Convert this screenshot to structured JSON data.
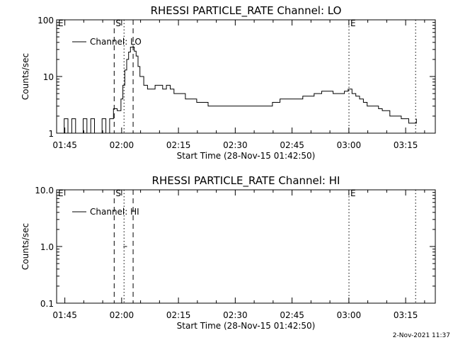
{
  "chart_data": [
    {
      "type": "line",
      "title": "RHESSI PARTICLE_RATE Channel: LO",
      "xlabel": "Start Time (28-Nov-15 01:42:50)",
      "ylabel": "Counts/sec",
      "y_scale": "log",
      "ylim": [
        1,
        100
      ],
      "y_ticks": [
        {
          "v": 1,
          "label": "1"
        },
        {
          "v": 10,
          "label": "10"
        },
        {
          "v": 100,
          "label": "100"
        }
      ],
      "x_unit": "minutes after 01:42:50",
      "xlim": [
        0,
        100
      ],
      "x_ticks": [
        {
          "v": 2.17,
          "label": "01:45"
        },
        {
          "v": 17.17,
          "label": "02:00"
        },
        {
          "v": 32.17,
          "label": "02:15"
        },
        {
          "v": 47.17,
          "label": "02:30"
        },
        {
          "v": 62.17,
          "label": "02:45"
        },
        {
          "v": 77.17,
          "label": "03:00"
        },
        {
          "v": 92.17,
          "label": "03:15"
        }
      ],
      "legend": {
        "label": "Channel: LO",
        "position": "top-left"
      },
      "flags": [
        {
          "v": 0,
          "label": "E"
        },
        {
          "v": 15.2,
          "label": "S"
        },
        {
          "v": 77.2,
          "label": "E"
        }
      ],
      "dashed_lines": [
        15.2,
        20.2
      ],
      "dotted_lines": [
        17.8,
        77.2,
        94.8
      ],
      "series": [
        {
          "name": "Channel: LO",
          "x": [
            1,
            2,
            3,
            4,
            5,
            6,
            7,
            8,
            9,
            10,
            11,
            12,
            13,
            14,
            15,
            16,
            17,
            17.5,
            18,
            18.5,
            19,
            19.5,
            20,
            20.5,
            21,
            21.5,
            22,
            23,
            24,
            25,
            26,
            27,
            28,
            29,
            30,
            31,
            32,
            33,
            34,
            35,
            36,
            37,
            38,
            39,
            40,
            41,
            42,
            43,
            44,
            45,
            46,
            47,
            48,
            49,
            50,
            51,
            52,
            53,
            54,
            55,
            56,
            57,
            58,
            59,
            60,
            61,
            62,
            63,
            64,
            65,
            66,
            67,
            68,
            69,
            70,
            71,
            72,
            73,
            74,
            75,
            76,
            77,
            78,
            79,
            80,
            81,
            82,
            83,
            84,
            85,
            86,
            87,
            88,
            89,
            90,
            91,
            92,
            93,
            94,
            95
          ],
          "y": [
            1,
            1.8,
            1,
            1.8,
            1,
            1,
            1.8,
            1,
            1.8,
            1,
            1,
            1.8,
            1,
            1.8,
            2.7,
            2.5,
            4,
            7,
            13,
            20,
            27,
            33,
            33,
            28,
            23,
            15,
            10,
            7,
            6,
            6,
            7,
            7,
            6,
            7,
            6,
            5,
            5,
            5,
            4,
            4,
            4,
            3.5,
            3.5,
            3.5,
            3,
            3,
            3,
            3,
            3,
            3,
            3,
            3,
            3,
            3,
            3,
            3,
            3,
            3,
            3,
            3,
            3,
            3.5,
            3.5,
            4,
            4,
            4,
            4,
            4,
            4,
            4.5,
            4.5,
            4.5,
            5,
            5,
            5.5,
            5.5,
            5.5,
            5,
            5,
            5,
            5.5,
            6,
            5,
            4.5,
            4,
            3.5,
            3,
            3,
            3,
            2.7,
            2.5,
            2.5,
            2,
            2,
            2,
            1.8,
            1.8,
            1.5,
            1.5,
            1.8
          ]
        }
      ]
    },
    {
      "type": "line",
      "title": "RHESSI PARTICLE_RATE Channel: HI",
      "xlabel": "Start Time (28-Nov-15 01:42:50)",
      "ylabel": "Counts/sec",
      "y_scale": "log",
      "ylim": [
        0.1,
        10
      ],
      "y_ticks": [
        {
          "v": 0.1,
          "label": "0.1"
        },
        {
          "v": 1,
          "label": "1.0"
        },
        {
          "v": 10,
          "label": "10.0"
        }
      ],
      "x_unit": "minutes after 01:42:50",
      "xlim": [
        0,
        100
      ],
      "x_ticks": [
        {
          "v": 2.17,
          "label": "01:45"
        },
        {
          "v": 17.17,
          "label": "02:00"
        },
        {
          "v": 32.17,
          "label": "02:15"
        },
        {
          "v": 47.17,
          "label": "02:30"
        },
        {
          "v": 62.17,
          "label": "02:45"
        },
        {
          "v": 77.17,
          "label": "03:00"
        },
        {
          "v": 92.17,
          "label": "03:15"
        }
      ],
      "legend": {
        "label": "Channel: HI",
        "position": "top-left"
      },
      "flags": [
        {
          "v": 0,
          "label": "E"
        },
        {
          "v": 15.2,
          "label": "S"
        },
        {
          "v": 77.2,
          "label": "E"
        }
      ],
      "dashed_lines": [
        15.2,
        20.2
      ],
      "dotted_lines": [
        17.8,
        77.2,
        94.8
      ],
      "series": [
        {
          "name": "Channel: HI",
          "x": [
            17.6,
            18.6
          ],
          "y": [
            1,
            1
          ]
        }
      ]
    }
  ],
  "footer": {
    "timestamp": "2-Nov-2021 11:37"
  }
}
